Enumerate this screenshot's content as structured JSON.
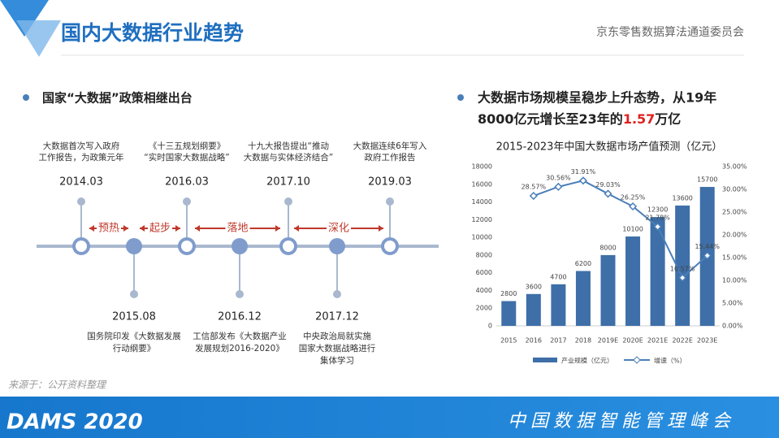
{
  "header": {
    "title": "国内大数据行业趋势",
    "org": "京东零售数据算法通道委员会"
  },
  "left_heading": "国家“大数据”政策相继出台",
  "timeline": {
    "top": [
      {
        "date": "2014.03",
        "lines": [
          "大数据首次写入政府",
          "工作报告，为政策元年"
        ]
      },
      {
        "date": "2016.03",
        "lines": [
          "《十三五规划纲要》",
          "“实时国家大数据战略”"
        ]
      },
      {
        "date": "2017.10",
        "lines": [
          "十九大报告提出“推动",
          "大数据与实体经济结合”"
        ]
      },
      {
        "date": "2019.03",
        "lines": [
          "大数据连续6年写入",
          "政府工作报告"
        ]
      }
    ],
    "bottom": [
      {
        "date": "2015.08",
        "lines": [
          "国务院印发《大数据发展",
          "行动纲要》"
        ]
      },
      {
        "date": "2016.12",
        "lines": [
          "工信部发布《大数据产业",
          "发展规划2016-2020》"
        ]
      },
      {
        "date": "2017.12",
        "lines": [
          "中央政治局就实施",
          "国家大数据战略进行",
          "集体学习"
        ]
      }
    ],
    "phases": [
      "预热",
      "起步",
      "落地",
      "深化"
    ]
  },
  "right_heading": {
    "line1": "大数据市场规模呈稳步上升态势，从19年",
    "line2_pre": "8000亿元增长至23年的",
    "highlight": "1.57",
    "line2_post": "万亿"
  },
  "source": "来源于：公开资料整理",
  "footer": {
    "brand": "DAMS 2020",
    "event": "中国数据智能管理峰会"
  },
  "chart_data": {
    "type": "bar",
    "title": "2015-2023年中国大数据市场产值预测（亿元）",
    "categories": [
      "2015",
      "2016",
      "2017",
      "2018",
      "2019E",
      "2020E",
      "2021E",
      "2022E",
      "2023E"
    ],
    "series": [
      {
        "name": "产业规模（亿元）",
        "type": "bar",
        "color": "#3e6fa8",
        "values": [
          2800,
          3600,
          4700,
          6200,
          8000,
          10100,
          12300,
          13600,
          15700
        ]
      },
      {
        "name": "增速（%）",
        "type": "line",
        "axis": "y2",
        "color": "#4a7fb8",
        "values": [
          null,
          28.57,
          30.56,
          31.91,
          29.03,
          26.25,
          21.78,
          10.57,
          15.44
        ],
        "value_labels": [
          null,
          "28.57%",
          "30.56%",
          "31.91%",
          "29.03%",
          "26.25%",
          "21.78%",
          "10.57%",
          "15.44%"
        ]
      }
    ],
    "ylim": [
      0,
      18000
    ],
    "yticks": [
      0,
      2000,
      4000,
      6000,
      8000,
      10000,
      12000,
      14000,
      16000,
      18000
    ],
    "y2lim": [
      0,
      35
    ],
    "y2ticks": [
      {
        "value": 0,
        "label": "0.00%"
      },
      {
        "value": 5,
        "label": "5.00%"
      },
      {
        "value": 10,
        "label": "10.00%"
      },
      {
        "value": 15,
        "label": "15.00%"
      },
      {
        "value": 20,
        "label": "20.00%"
      },
      {
        "value": 25,
        "label": "25.00%"
      },
      {
        "value": 30,
        "label": "30.00%"
      },
      {
        "value": 35,
        "label": "35.00%"
      }
    ],
    "legend": "bottom"
  }
}
